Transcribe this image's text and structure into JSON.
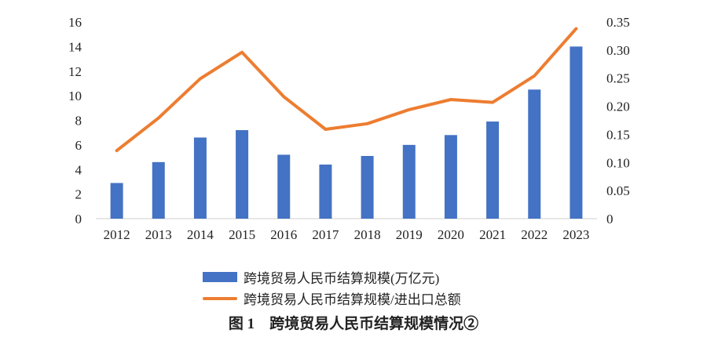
{
  "chart_data": {
    "type": "bar+line",
    "categories": [
      "2012",
      "2013",
      "2014",
      "2015",
      "2016",
      "2017",
      "2018",
      "2019",
      "2020",
      "2021",
      "2022",
      "2023"
    ],
    "series": [
      {
        "name": "跨境贸易人民币结算规模(万亿元)",
        "type": "bar",
        "axis": "left",
        "color": "#4472C4",
        "values": [
          2.9,
          4.6,
          6.6,
          7.2,
          5.2,
          4.4,
          5.1,
          6.0,
          6.8,
          7.9,
          10.5,
          14.0
        ]
      },
      {
        "name": "跨境贸易人民币结算规模/进出口总额",
        "type": "line",
        "axis": "right",
        "color": "#ED7D31",
        "values": [
          0.121,
          0.179,
          0.249,
          0.296,
          0.217,
          0.159,
          0.169,
          0.194,
          0.212,
          0.207,
          0.254,
          0.338
        ]
      }
    ],
    "y_left": {
      "min": 0,
      "max": 16,
      "ticks": [
        "0",
        "2",
        "4",
        "6",
        "8",
        "10",
        "12",
        "14",
        "16"
      ]
    },
    "y_right": {
      "min": 0,
      "max": 0.35,
      "ticks": [
        "0",
        "0.05",
        "0.10",
        "0.15",
        "0.20",
        "0.25",
        "0.30",
        "0.35"
      ]
    },
    "grid": false,
    "legend_position": "bottom",
    "title": "图 1　跨境贸易人民币结算规模情况②"
  }
}
